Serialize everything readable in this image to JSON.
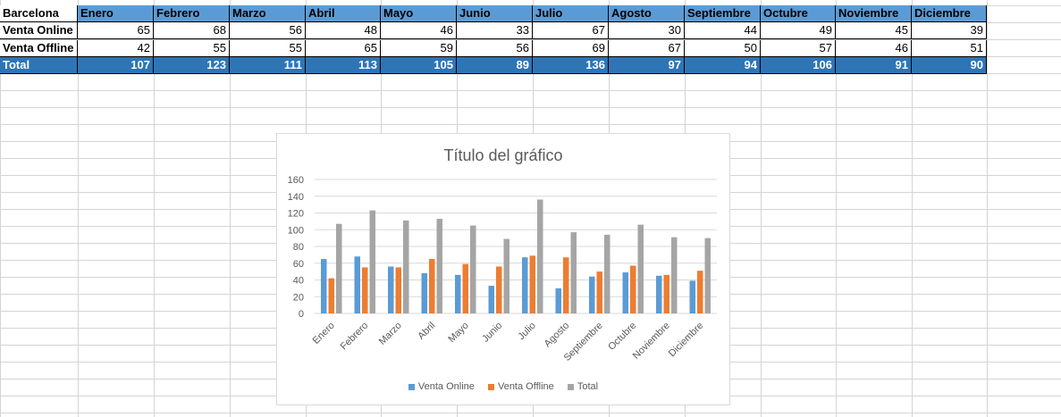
{
  "sheet": {
    "corner": "Barcelona",
    "months": [
      "Enero",
      "Febrero",
      "Marzo",
      "Abril",
      "Mayo",
      "Junio",
      "Julio",
      "Agosto",
      "Septiembre",
      "Octubre",
      "Noviembre",
      "Diciembre"
    ],
    "rows": [
      {
        "label": "Venta Online",
        "values": [
          65,
          68,
          56,
          48,
          46,
          33,
          67,
          30,
          44,
          49,
          45,
          39
        ]
      },
      {
        "label": "Venta Offline",
        "values": [
          42,
          55,
          55,
          65,
          59,
          56,
          69,
          67,
          50,
          57,
          46,
          51
        ]
      },
      {
        "label": "Total",
        "values": [
          107,
          123,
          111,
          113,
          105,
          89,
          136,
          97,
          94,
          106,
          91,
          90
        ]
      }
    ]
  },
  "chart": {
    "title": "Título del gráfico",
    "legend": [
      "Venta Online",
      "Venta Offline",
      "Total"
    ]
  },
  "chart_data": {
    "type": "bar",
    "title": "Título del gráfico",
    "categories": [
      "Enero",
      "Febrero",
      "Marzo",
      "Abril",
      "Mayo",
      "Junio",
      "Julio",
      "Agosto",
      "Septiembre",
      "Octubre",
      "Noviembre",
      "Diciembre"
    ],
    "series": [
      {
        "name": "Venta Online",
        "values": [
          65,
          68,
          56,
          48,
          46,
          33,
          67,
          30,
          44,
          49,
          45,
          39
        ],
        "color": "#5b9bd5"
      },
      {
        "name": "Venta Offline",
        "values": [
          42,
          55,
          55,
          65,
          59,
          56,
          69,
          67,
          50,
          57,
          46,
          51
        ],
        "color": "#ed7d31"
      },
      {
        "name": "Total",
        "values": [
          107,
          123,
          111,
          113,
          105,
          89,
          136,
          97,
          94,
          106,
          91,
          90
        ],
        "color": "#a5a5a5"
      }
    ],
    "ylim": [
      0,
      160
    ],
    "yticks": [
      0,
      20,
      40,
      60,
      80,
      100,
      120,
      140,
      160
    ],
    "grid": true,
    "legend_position": "bottom"
  }
}
